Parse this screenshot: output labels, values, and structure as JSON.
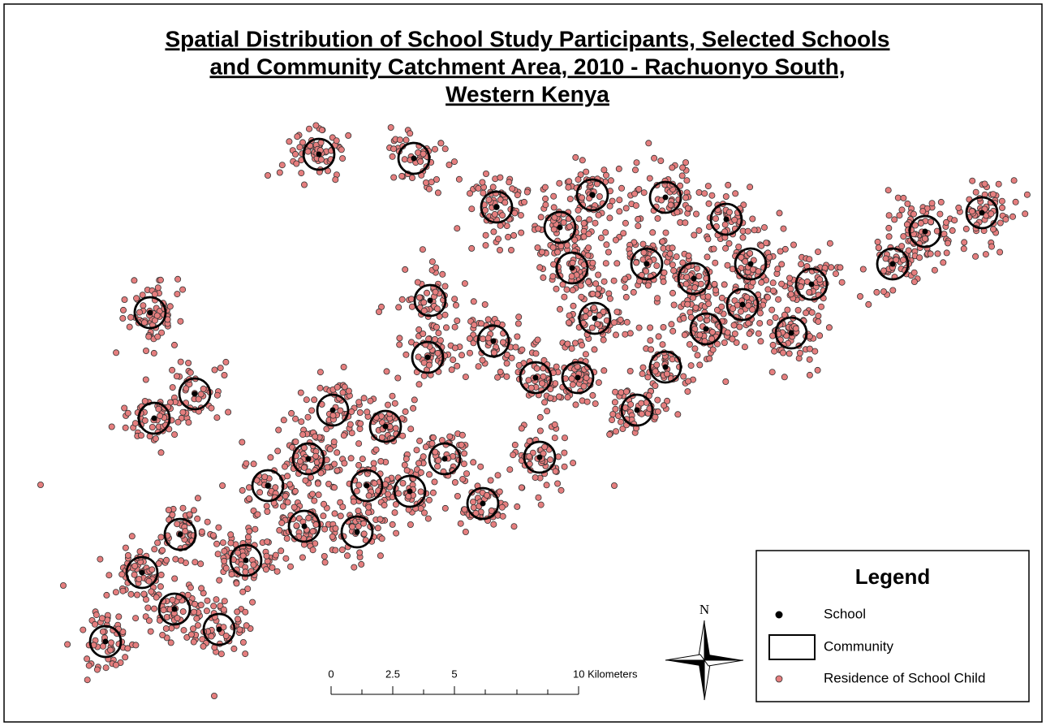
{
  "title": {
    "lines": [
      "Spatial Distribution of School Study Participants, Selected Schools",
      "and Community Catchment Area, 2010 - Rachuonyo South,",
      "Western Kenya"
    ]
  },
  "legend": {
    "title": "Legend",
    "items": [
      "School",
      "Community",
      "Residence of School Child"
    ]
  },
  "scale_bar": {
    "labels": [
      "0",
      "2.5",
      "5",
      "10 Kilometers"
    ]
  },
  "north_arrow": {
    "label": "N"
  }
}
